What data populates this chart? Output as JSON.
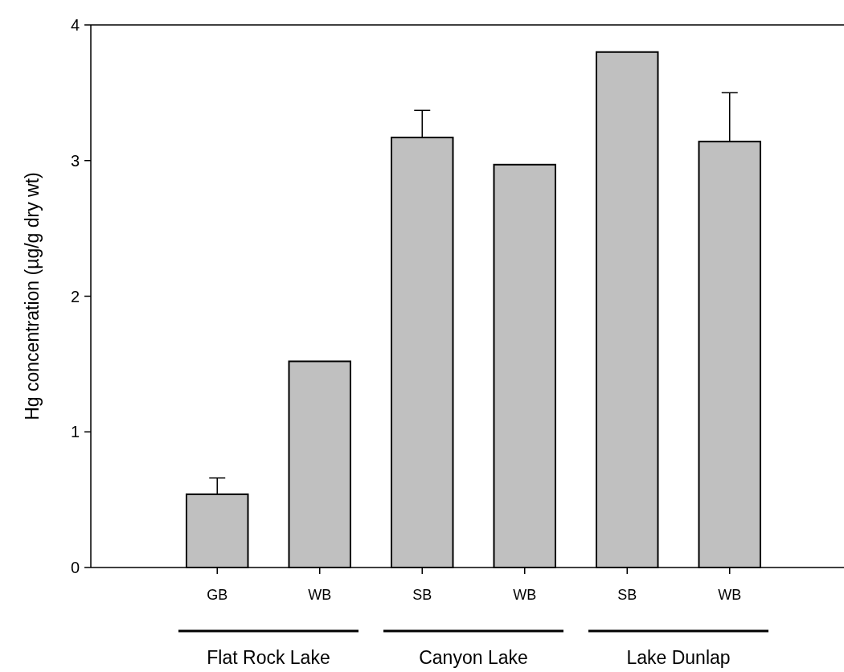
{
  "chart_data": {
    "type": "bar",
    "ylabel": "Hg concentration (µg/g dry wt)",
    "categories": [
      "GB",
      "WB",
      "SB",
      "WB",
      "SB",
      "WB"
    ],
    "values": [
      0.54,
      1.52,
      3.17,
      2.97,
      3.8,
      3.14
    ],
    "errors": [
      [
        0.54,
        0.66
      ],
      null,
      [
        3.17,
        3.37
      ],
      null,
      null,
      [
        3.14,
        3.5
      ]
    ],
    "color": "#c0c0c0",
    "ylim": [
      0,
      4
    ],
    "yticks": [
      0,
      1,
      2,
      3,
      4
    ],
    "grid": false,
    "annotations": [
      "Flat Rock Lake",
      "Canyon Lake",
      "Lake Dunlap"
    ]
  }
}
